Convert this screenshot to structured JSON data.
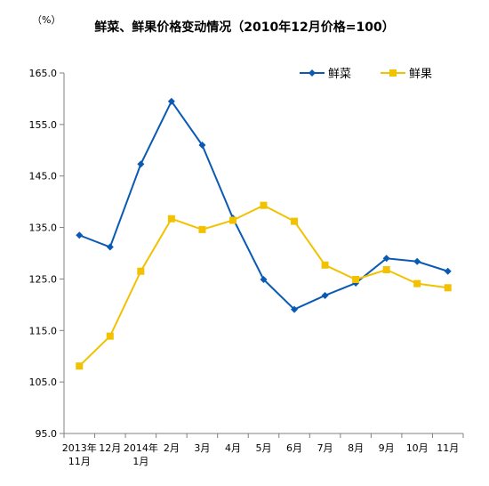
{
  "chart_data": {
    "type": "line",
    "title": "鲜菜、鲜果价格变动情况（2010年12月价格=100）",
    "unit_label": "（%）",
    "categories": [
      [
        "2013年",
        "11月"
      ],
      [
        "12月"
      ],
      [
        "2014年",
        "1月"
      ],
      [
        "2月"
      ],
      [
        "3月"
      ],
      [
        "4月"
      ],
      [
        "5月"
      ],
      [
        "6月"
      ],
      [
        "7月"
      ],
      [
        "8月"
      ],
      [
        "9月"
      ],
      [
        "10月"
      ],
      [
        "11月"
      ]
    ],
    "y_ticks": [
      "95.0",
      "105.0",
      "115.0",
      "125.0",
      "135.0",
      "145.0",
      "155.0",
      "165.0"
    ],
    "ylim": [
      95,
      165
    ],
    "grid": false,
    "legend_position": "top-right",
    "series": [
      {
        "name": "鲜菜",
        "color": "#0A5AB4",
        "marker": "diamond",
        "values": [
          133.5,
          131.2,
          147.3,
          159.5,
          151.0,
          136.8,
          124.9,
          119.1,
          121.8,
          124.2,
          129.0,
          128.4,
          126.5
        ]
      },
      {
        "name": "鲜果",
        "color": "#F2C100",
        "marker": "square",
        "values": [
          108.1,
          113.9,
          126.5,
          136.7,
          134.6,
          136.4,
          139.3,
          136.2,
          127.7,
          124.9,
          126.8,
          124.1,
          123.3
        ]
      }
    ]
  }
}
